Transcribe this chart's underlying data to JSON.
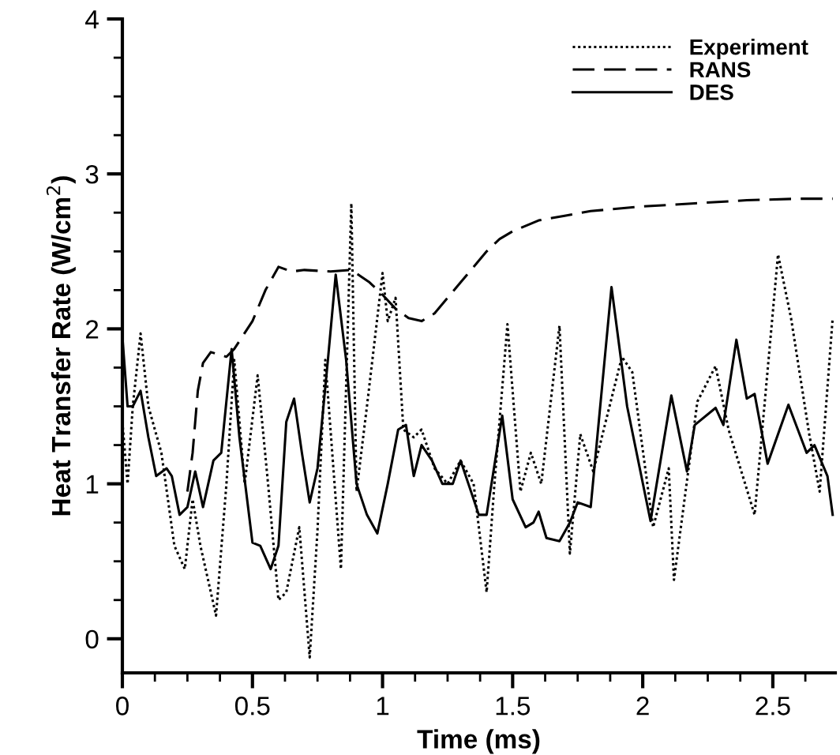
{
  "chart_data": {
    "type": "line",
    "xlabel": "Time (ms)",
    "ylabel": "Heat Transfer Rate (W/cm$^{2}$)",
    "xlim": [
      0,
      2.74
    ],
    "ylim": [
      -0.22,
      4
    ],
    "xticks": [
      0,
      0.5,
      1,
      1.5,
      2,
      2.5
    ],
    "yticks": [
      0,
      1,
      2,
      3,
      4
    ],
    "grid": false,
    "legend": "top right",
    "series": [
      {
        "name": "Experiment",
        "color": "#000000",
        "line_style": "dotted",
        "x": [
          0,
          0.02,
          0.04,
          0.07,
          0.1,
          0.15,
          0.2,
          0.24,
          0.27,
          0.3,
          0.36,
          0.4,
          0.43,
          0.47,
          0.52,
          0.56,
          0.6,
          0.63,
          0.68,
          0.72,
          0.75,
          0.78,
          0.82,
          0.84,
          0.88,
          0.9,
          0.94,
          1.0,
          1.02,
          1.05,
          1.08,
          1.12,
          1.15,
          1.2,
          1.25,
          1.3,
          1.35,
          1.4,
          1.43,
          1.48,
          1.53,
          1.57,
          1.61,
          1.68,
          1.72,
          1.76,
          1.81,
          1.92,
          1.96,
          2.04,
          2.1,
          2.12,
          2.21,
          2.28,
          2.33,
          2.43,
          2.52,
          2.57,
          2.64,
          2.68,
          2.73
        ],
        "values": [
          1.4,
          1.0,
          1.5,
          1.97,
          1.5,
          1.2,
          0.6,
          0.45,
          0.9,
          0.6,
          0.15,
          1.0,
          1.8,
          1.0,
          1.7,
          1.0,
          0.25,
          0.3,
          0.72,
          -0.12,
          0.7,
          1.8,
          0.9,
          0.45,
          2.81,
          0.95,
          1.5,
          2.36,
          2.05,
          2.2,
          1.35,
          1.3,
          1.35,
          1.1,
          1.0,
          1.15,
          1.0,
          0.3,
          1.0,
          2.03,
          0.95,
          1.2,
          1.0,
          2.02,
          0.55,
          1.32,
          1.08,
          1.82,
          1.72,
          0.72,
          1.1,
          0.38,
          1.53,
          1.76,
          1.35,
          0.8,
          2.48,
          2.07,
          1.32,
          0.95,
          2.07
        ]
      },
      {
        "name": "RANS",
        "color": "#000000",
        "line_style": "dashed",
        "x": [
          0.25,
          0.27,
          0.29,
          0.31,
          0.34,
          0.4,
          0.43,
          0.5,
          0.55,
          0.6,
          0.65,
          0.7,
          0.8,
          0.88,
          0.95,
          1.0,
          1.05,
          1.1,
          1.15,
          1.2,
          1.25,
          1.3,
          1.35,
          1.4,
          1.45,
          1.5,
          1.6,
          1.7,
          1.8,
          2.0,
          2.2,
          2.4,
          2.6,
          2.73
        ],
        "values": [
          0.95,
          1.2,
          1.6,
          1.78,
          1.85,
          1.82,
          1.87,
          2.05,
          2.25,
          2.4,
          2.37,
          2.38,
          2.37,
          2.38,
          2.3,
          2.22,
          2.13,
          2.07,
          2.05,
          2.1,
          2.2,
          2.3,
          2.4,
          2.5,
          2.58,
          2.63,
          2.7,
          2.73,
          2.76,
          2.79,
          2.81,
          2.83,
          2.84,
          2.84
        ]
      },
      {
        "name": "DES",
        "color": "#000000",
        "line_style": "solid",
        "x": [
          0,
          0.02,
          0.04,
          0.07,
          0.1,
          0.13,
          0.17,
          0.19,
          0.22,
          0.25,
          0.28,
          0.31,
          0.35,
          0.38,
          0.42,
          0.45,
          0.5,
          0.53,
          0.57,
          0.6,
          0.63,
          0.66,
          0.69,
          0.72,
          0.75,
          0.79,
          0.82,
          0.86,
          0.9,
          0.94,
          0.98,
          1.02,
          1.06,
          1.09,
          1.12,
          1.15,
          1.19,
          1.23,
          1.27,
          1.3,
          1.33,
          1.37,
          1.4,
          1.46,
          1.5,
          1.55,
          1.58,
          1.6,
          1.63,
          1.68,
          1.72,
          1.75,
          1.8,
          1.88,
          1.94,
          2.03,
          2.11,
          2.17,
          2.2,
          2.28,
          2.31,
          2.36,
          2.4,
          2.43,
          2.48,
          2.56,
          2.63,
          2.66,
          2.71,
          2.73
        ],
        "values": [
          1.95,
          1.5,
          1.5,
          1.6,
          1.3,
          1.05,
          1.1,
          1.05,
          0.8,
          0.85,
          1.08,
          0.85,
          1.15,
          1.2,
          1.87,
          1.3,
          0.62,
          0.6,
          0.45,
          0.6,
          1.4,
          1.55,
          1.2,
          0.88,
          1.1,
          1.8,
          2.35,
          1.8,
          1.0,
          0.8,
          0.68,
          1.0,
          1.35,
          1.38,
          1.05,
          1.25,
          1.15,
          1.0,
          1.0,
          1.15,
          1.0,
          0.8,
          0.8,
          1.44,
          0.9,
          0.72,
          0.75,
          0.82,
          0.65,
          0.63,
          0.75,
          0.88,
          0.85,
          2.27,
          1.5,
          0.76,
          1.57,
          1.08,
          1.38,
          1.49,
          1.38,
          1.93,
          1.55,
          1.58,
          1.13,
          1.51,
          1.2,
          1.25,
          1.05,
          0.8
        ]
      }
    ]
  }
}
